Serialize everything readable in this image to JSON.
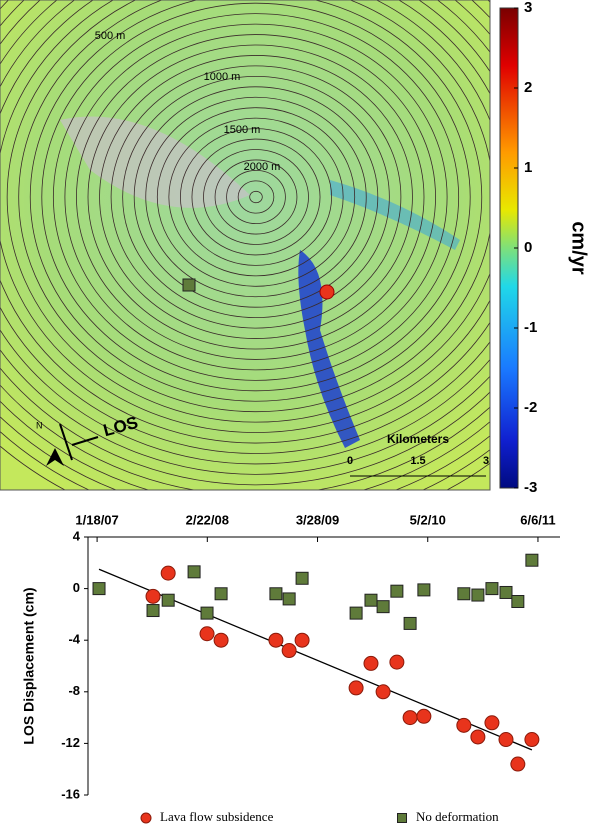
{
  "map": {
    "contour_labels": [
      "500 m",
      "1000 m",
      "1500 m",
      "2000 m"
    ],
    "colorbar": {
      "label": "cm/yr",
      "lim": [
        -3,
        3
      ],
      "ticks": [
        3,
        2,
        1,
        0,
        -1,
        -2,
        -3
      ]
    },
    "north": "N",
    "los": "LOS",
    "scale_title": "Kilometers",
    "scale_ticks": [
      "0",
      "1.5",
      "3"
    ]
  },
  "chart_data": {
    "type": "scatter",
    "ylabel": "LOS Displacement (cm)",
    "xlim": [
      "2006-12-16",
      "2011-08-25"
    ],
    "xticks": [
      {
        "value": "2007-01-18",
        "label": "1/18/07"
      },
      {
        "value": "2008-02-22",
        "label": "2/22/08"
      },
      {
        "value": "2009-03-28",
        "label": "3/28/09"
      },
      {
        "value": "2010-05-02",
        "label": "5/2/10"
      },
      {
        "value": "2011-06-06",
        "label": "6/6/11"
      }
    ],
    "ylim": [
      -16,
      4
    ],
    "yticks": [
      4,
      0,
      -4,
      -8,
      -12,
      -16
    ],
    "series": [
      {
        "name": "Lava flow subsidence",
        "color": "#e8341c",
        "marker": "circle",
        "x": [
          "2007-08-09",
          "2007-10-03",
          "2008-02-21",
          "2008-04-12",
          "2008-10-28",
          "2008-12-15",
          "2009-01-31",
          "2009-08-15",
          "2009-10-08",
          "2009-11-21",
          "2010-01-10",
          "2010-02-27",
          "2010-04-18",
          "2010-09-10",
          "2010-10-31",
          "2010-12-21",
          "2011-02-10",
          "2011-03-25",
          "2011-05-15"
        ],
        "values": [
          -0.6,
          1.2,
          -3.5,
          -4,
          -4,
          -4.8,
          -4,
          -7.7,
          -5.8,
          -8,
          -5.7,
          -10,
          -9.9,
          -10.6,
          -11.5,
          -10.4,
          -11.7,
          -13.6,
          -11.7
        ]
      },
      {
        "name": "No deformation",
        "color": "#5f7b3a",
        "marker": "square",
        "x": [
          "2007-01-25",
          "2007-08-09",
          "2007-10-03",
          "2008-01-05",
          "2008-02-21",
          "2008-04-12",
          "2008-10-28",
          "2008-12-15",
          "2009-01-31",
          "2009-08-15",
          "2009-10-08",
          "2009-11-21",
          "2010-01-10",
          "2010-02-27",
          "2010-04-18",
          "2010-09-10",
          "2010-10-31",
          "2010-12-21",
          "2011-02-10",
          "2011-03-25",
          "2011-05-15"
        ],
        "values": [
          0,
          -1.7,
          -0.9,
          1.3,
          -1.9,
          -0.4,
          -0.4,
          -0.8,
          0.8,
          -1.9,
          -0.9,
          -1.4,
          -0.2,
          -2.7,
          -0.1,
          -0.4,
          -0.5,
          0,
          -0.3,
          -1,
          2.2
        ]
      }
    ],
    "trend": {
      "x": [
        "2007-01-25",
        "2011-05-15"
      ],
      "values": [
        1.5,
        -12.5
      ]
    }
  }
}
